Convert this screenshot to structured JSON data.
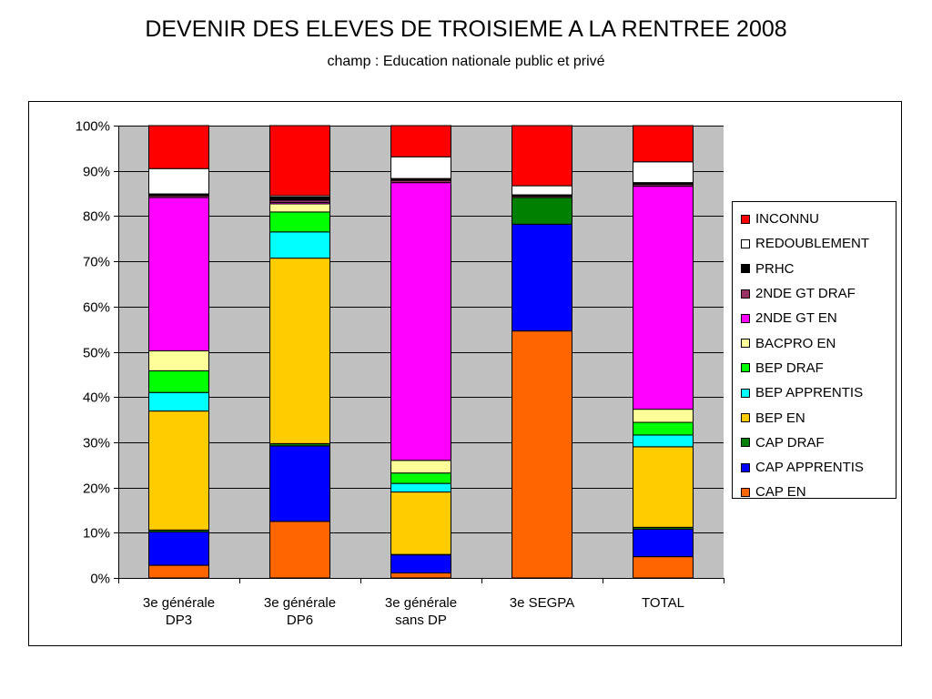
{
  "chart_data": {
    "type": "bar",
    "stacked": true,
    "title": "DEVENIR DES ELEVES DE TROISIEME A LA RENTREE 2008",
    "subtitle": "champ : Education nationale public et privé",
    "xlabel": "",
    "ylabel": "",
    "ylim": [
      0,
      100
    ],
    "yticks": [
      "0%",
      "10%",
      "20%",
      "30%",
      "40%",
      "50%",
      "60%",
      "70%",
      "80%",
      "90%",
      "100%"
    ],
    "grid": true,
    "legend_position": "right",
    "categories": [
      [
        "3e générale",
        "DP3"
      ],
      [
        "3e générale",
        "DP6"
      ],
      [
        "3e générale",
        "sans DP"
      ],
      [
        "3e SEGPA"
      ],
      [
        "TOTAL"
      ]
    ],
    "series": [
      {
        "name": "CAP EN",
        "color": "#ff6600",
        "values": [
          2.8,
          12.5,
          1.1,
          54.6,
          4.7
        ]
      },
      {
        "name": "CAP APPRENTIS",
        "color": "#0000ff",
        "values": [
          7.4,
          16.7,
          4.0,
          23.6,
          6.1
        ]
      },
      {
        "name": "CAP DRAF",
        "color": "#008000",
        "values": [
          0.4,
          0.5,
          0.1,
          5.9,
          0.4
        ]
      },
      {
        "name": "BEP EN",
        "color": "#ffcc00",
        "values": [
          26.3,
          41.0,
          13.8,
          0,
          17.8
        ]
      },
      {
        "name": "BEP APPRENTIS",
        "color": "#00ffff",
        "values": [
          4.1,
          5.8,
          1.9,
          0,
          2.6
        ]
      },
      {
        "name": "BEP DRAF",
        "color": "#00ff00",
        "values": [
          4.8,
          4.4,
          2.3,
          0,
          2.8
        ]
      },
      {
        "name": "BACPRO EN",
        "color": "#ffff99",
        "values": [
          4.4,
          1.8,
          2.8,
          0,
          2.9
        ]
      },
      {
        "name": "2NDE GT EN",
        "color": "#ff00ff",
        "values": [
          33.9,
          0.3,
          61.4,
          0,
          49.3
        ]
      },
      {
        "name": "2NDE GT DRAF",
        "color": "#993366",
        "values": [
          0.4,
          0.5,
          0.5,
          0.3,
          0.4
        ]
      },
      {
        "name": "PRHC",
        "color": "#000000",
        "values": [
          0.4,
          0.7,
          0.4,
          0.3,
          0.4
        ]
      },
      {
        "name": "REDOUBLEMENT",
        "color": "#ffffff",
        "values": [
          5.6,
          0.3,
          4.8,
          2.0,
          4.6
        ]
      },
      {
        "name": "INCONNU",
        "color": "#ff0000",
        "values": [
          9.5,
          15.5,
          6.9,
          13.3,
          8.0
        ]
      }
    ]
  }
}
